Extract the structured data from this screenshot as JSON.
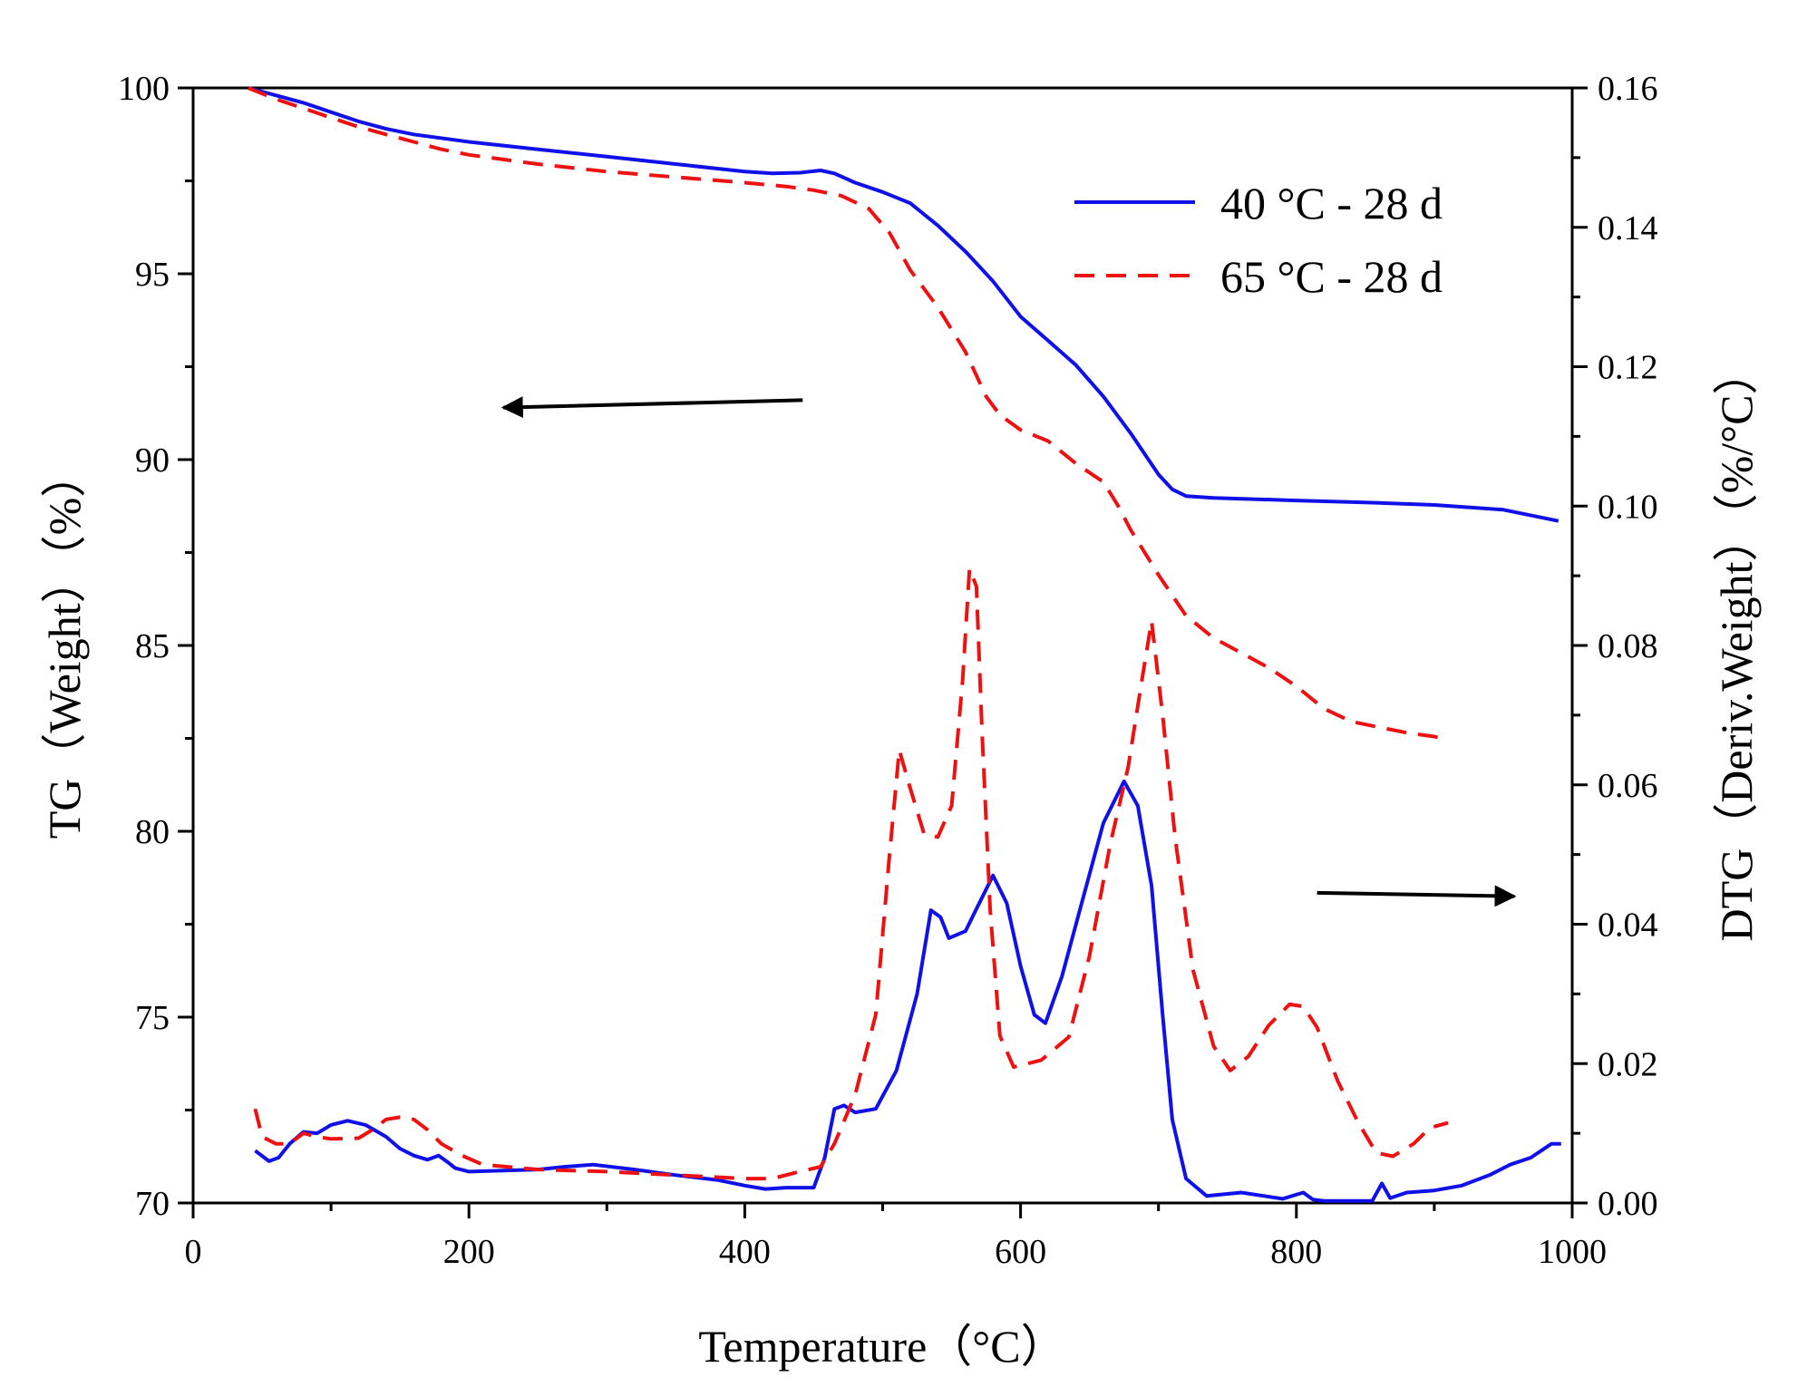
{
  "chart_data": {
    "type": "line",
    "x_axis": {
      "label": "Temperature（°C）",
      "range": [
        0,
        1000
      ],
      "ticks": [
        0,
        200,
        400,
        600,
        800,
        1000
      ],
      "tick_labels": [
        "0",
        "200",
        "400",
        "600",
        "800",
        "1000"
      ]
    },
    "y_left": {
      "label": "TG（Weight）（%）",
      "range": [
        70,
        100
      ],
      "ticks": [
        70,
        75,
        80,
        85,
        90,
        95,
        100
      ],
      "tick_labels": [
        "70",
        "75",
        "80",
        "85",
        "90",
        "95",
        "100"
      ]
    },
    "y_right": {
      "label": "DTG（Deriv.Weight）（%/°C）",
      "range": [
        0,
        0.16
      ],
      "ticks": [
        0,
        0.02,
        0.04,
        0.06,
        0.08,
        0.1,
        0.12,
        0.14,
        0.16
      ],
      "tick_labels": [
        "0.00",
        "0.02",
        "0.04",
        "0.06",
        "0.08",
        "0.10",
        "0.12",
        "0.14",
        "0.16"
      ]
    },
    "legend": [
      {
        "name": "40 °C - 28 d",
        "color": "#1010e8",
        "style": "solid"
      },
      {
        "name": "65 °C - 28 d",
        "color": "#ee1111",
        "style": "dashed"
      }
    ],
    "arrows": [
      {
        "direction": "left",
        "points_to": "left axis (TG)",
        "tip": [
          225,
          91.4
        ],
        "tail": [
          442,
          91.6
        ]
      },
      {
        "direction": "right",
        "points_to": "right axis (DTG)",
        "tip": [
          958,
          0.044
        ],
        "tail": [
          815,
          0.0445
        ]
      }
    ],
    "series": [
      {
        "name": "40 °C - 28 d",
        "kind": "TG",
        "axis": "left",
        "color": "#1010e8",
        "style": "solid",
        "points": [
          [
            40,
            100
          ],
          [
            60,
            99.8
          ],
          [
            80,
            99.6
          ],
          [
            100,
            99.35
          ],
          [
            120,
            99.1
          ],
          [
            140,
            98.9
          ],
          [
            160,
            98.75
          ],
          [
            200,
            98.55
          ],
          [
            250,
            98.35
          ],
          [
            300,
            98.15
          ],
          [
            350,
            97.95
          ],
          [
            400,
            97.75
          ],
          [
            420,
            97.7
          ],
          [
            440,
            97.72
          ],
          [
            455,
            97.78
          ],
          [
            465,
            97.7
          ],
          [
            480,
            97.45
          ],
          [
            500,
            97.2
          ],
          [
            520,
            96.9
          ],
          [
            540,
            96.3
          ],
          [
            560,
            95.6
          ],
          [
            580,
            94.8
          ],
          [
            600,
            93.85
          ],
          [
            620,
            93.2
          ],
          [
            640,
            92.55
          ],
          [
            660,
            91.7
          ],
          [
            680,
            90.7
          ],
          [
            700,
            89.6
          ],
          [
            710,
            89.2
          ],
          [
            720,
            89.02
          ],
          [
            740,
            88.97
          ],
          [
            800,
            88.9
          ],
          [
            850,
            88.85
          ],
          [
            900,
            88.78
          ],
          [
            950,
            88.65
          ],
          [
            990,
            88.35
          ]
        ]
      },
      {
        "name": "65 °C - 28 d",
        "kind": "TG",
        "axis": "left",
        "color": "#ee1111",
        "style": "dashed",
        "points": [
          [
            40,
            100
          ],
          [
            60,
            99.7
          ],
          [
            80,
            99.45
          ],
          [
            100,
            99.2
          ],
          [
            120,
            98.95
          ],
          [
            140,
            98.75
          ],
          [
            160,
            98.55
          ],
          [
            180,
            98.35
          ],
          [
            200,
            98.2
          ],
          [
            250,
            97.95
          ],
          [
            300,
            97.75
          ],
          [
            350,
            97.6
          ],
          [
            400,
            97.45
          ],
          [
            430,
            97.35
          ],
          [
            450,
            97.25
          ],
          [
            470,
            97.1
          ],
          [
            490,
            96.75
          ],
          [
            505,
            96.1
          ],
          [
            520,
            95.1
          ],
          [
            540,
            94.1
          ],
          [
            560,
            92.9
          ],
          [
            575,
            91.7
          ],
          [
            585,
            91.2
          ],
          [
            600,
            90.8
          ],
          [
            620,
            90.5
          ],
          [
            640,
            89.9
          ],
          [
            660,
            89.4
          ],
          [
            670,
            88.8
          ],
          [
            680,
            88.1
          ],
          [
            700,
            86.9
          ],
          [
            720,
            85.8
          ],
          [
            740,
            85.2
          ],
          [
            760,
            84.8
          ],
          [
            780,
            84.4
          ],
          [
            800,
            83.9
          ],
          [
            820,
            83.3
          ],
          [
            840,
            82.95
          ],
          [
            860,
            82.8
          ],
          [
            880,
            82.65
          ],
          [
            900,
            82.55
          ],
          [
            910,
            82.45
          ]
        ]
      },
      {
        "name": "40 °C - 28 d",
        "kind": "DTG",
        "axis": "right",
        "color": "#1010e8",
        "style": "solid",
        "points": [
          [
            45,
            0.0075
          ],
          [
            55,
            0.006
          ],
          [
            62,
            0.0065
          ],
          [
            70,
            0.0085
          ],
          [
            80,
            0.0102
          ],
          [
            90,
            0.01
          ],
          [
            100,
            0.0112
          ],
          [
            112,
            0.0118
          ],
          [
            125,
            0.0112
          ],
          [
            140,
            0.0095
          ],
          [
            150,
            0.0078
          ],
          [
            160,
            0.0068
          ],
          [
            170,
            0.0062
          ],
          [
            178,
            0.0068
          ],
          [
            185,
            0.0058
          ],
          [
            190,
            0.005
          ],
          [
            200,
            0.0045
          ],
          [
            250,
            0.0048
          ],
          [
            270,
            0.0052
          ],
          [
            290,
            0.0055
          ],
          [
            320,
            0.0048
          ],
          [
            350,
            0.004
          ],
          [
            380,
            0.0033
          ],
          [
            400,
            0.0025
          ],
          [
            415,
            0.002
          ],
          [
            430,
            0.0022
          ],
          [
            450,
            0.0022
          ],
          [
            458,
            0.0065
          ],
          [
            465,
            0.0135
          ],
          [
            472,
            0.014
          ],
          [
            480,
            0.013
          ],
          [
            495,
            0.0135
          ],
          [
            510,
            0.019
          ],
          [
            525,
            0.03
          ],
          [
            535,
            0.042
          ],
          [
            542,
            0.041
          ],
          [
            548,
            0.038
          ],
          [
            560,
            0.039
          ],
          [
            570,
            0.043
          ],
          [
            580,
            0.047
          ],
          [
            590,
            0.043
          ],
          [
            600,
            0.034
          ],
          [
            610,
            0.027
          ],
          [
            618,
            0.0258
          ],
          [
            630,
            0.0325
          ],
          [
            645,
            0.0435
          ],
          [
            660,
            0.0545
          ],
          [
            675,
            0.0605
          ],
          [
            685,
            0.057
          ],
          [
            695,
            0.0455
          ],
          [
            703,
            0.027
          ],
          [
            710,
            0.012
          ],
          [
            720,
            0.0035
          ],
          [
            735,
            0.001
          ],
          [
            760,
            0.0015
          ],
          [
            790,
            0.0006
          ],
          [
            805,
            0.0015
          ],
          [
            812,
            0.0005
          ],
          [
            820,
            0.0003
          ],
          [
            855,
            0.0003
          ],
          [
            862,
            0.0028
          ],
          [
            868,
            0.0007
          ],
          [
            880,
            0.0015
          ],
          [
            900,
            0.0018
          ],
          [
            920,
            0.0025
          ],
          [
            940,
            0.004
          ],
          [
            955,
            0.0055
          ],
          [
            970,
            0.0065
          ],
          [
            985,
            0.0085
          ],
          [
            992,
            0.0085
          ]
        ]
      },
      {
        "name": "65 °C - 28 d",
        "kind": "DTG",
        "axis": "right",
        "color": "#ee1111",
        "style": "dashed",
        "points": [
          [
            45,
            0.0135
          ],
          [
            50,
            0.0095
          ],
          [
            60,
            0.0085
          ],
          [
            70,
            0.0085
          ],
          [
            80,
            0.01
          ],
          [
            90,
            0.0095
          ],
          [
            100,
            0.0092
          ],
          [
            120,
            0.0093
          ],
          [
            130,
            0.0105
          ],
          [
            140,
            0.012
          ],
          [
            150,
            0.0123
          ],
          [
            160,
            0.012
          ],
          [
            170,
            0.0105
          ],
          [
            180,
            0.0085
          ],
          [
            195,
            0.0068
          ],
          [
            210,
            0.0055
          ],
          [
            250,
            0.0048
          ],
          [
            300,
            0.0045
          ],
          [
            350,
            0.004
          ],
          [
            400,
            0.0035
          ],
          [
            420,
            0.0035
          ],
          [
            440,
            0.0045
          ],
          [
            455,
            0.0052
          ],
          [
            465,
            0.0085
          ],
          [
            480,
            0.0155
          ],
          [
            495,
            0.027
          ],
          [
            505,
            0.05
          ],
          [
            512,
            0.065
          ],
          [
            520,
            0.0595
          ],
          [
            530,
            0.053
          ],
          [
            540,
            0.0525
          ],
          [
            550,
            0.057
          ],
          [
            558,
            0.075
          ],
          [
            563,
            0.091
          ],
          [
            568,
            0.0885
          ],
          [
            572,
            0.068
          ],
          [
            578,
            0.042
          ],
          [
            585,
            0.024
          ],
          [
            595,
            0.0195
          ],
          [
            615,
            0.0205
          ],
          [
            635,
            0.0238
          ],
          [
            650,
            0.0355
          ],
          [
            665,
            0.0515
          ],
          [
            678,
            0.0625
          ],
          [
            688,
            0.075
          ],
          [
            695,
            0.0835
          ],
          [
            703,
            0.07
          ],
          [
            712,
            0.0525
          ],
          [
            725,
            0.0335
          ],
          [
            740,
            0.0225
          ],
          [
            752,
            0.019
          ],
          [
            765,
            0.021
          ],
          [
            780,
            0.0255
          ],
          [
            795,
            0.0285
          ],
          [
            805,
            0.0282
          ],
          [
            815,
            0.0252
          ],
          [
            830,
            0.0175
          ],
          [
            845,
            0.0115
          ],
          [
            858,
            0.0072
          ],
          [
            870,
            0.0067
          ],
          [
            885,
            0.0085
          ],
          [
            897,
            0.0108
          ],
          [
            910,
            0.0115
          ]
        ]
      }
    ]
  }
}
